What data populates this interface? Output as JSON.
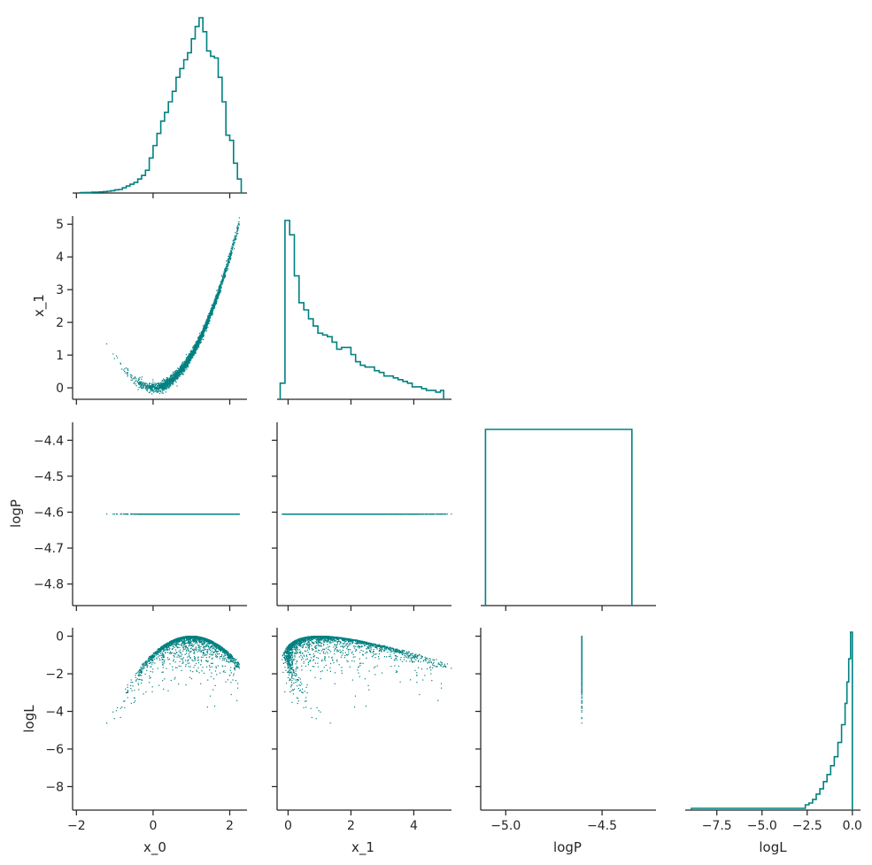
{
  "chart_data": {
    "type": "scatter",
    "title": "",
    "variables": [
      "x_0",
      "x_1",
      "logP",
      "logL"
    ],
    "axis_labels": {
      "x_0": "x_0",
      "x_1": "x_1",
      "logP": "logP",
      "logL": "logL"
    },
    "color": "#008080",
    "axis_ranges": {
      "x_0": [
        -2.1,
        2.45
      ],
      "x_1": [
        -0.35,
        5.2
      ],
      "logP": [
        -5.13,
        -4.22
      ],
      "logP_row": [
        -4.86,
        -4.35
      ],
      "logL": [
        -9.25,
        0.45
      ],
      "x_1_row": [
        -0.35,
        5.25
      ]
    },
    "ticks": {
      "x_0": [
        -2,
        0,
        2
      ],
      "x_0_labels": [
        "−2",
        "0",
        "2"
      ],
      "x_1": [
        0,
        2,
        4
      ],
      "x_1_labels": [
        "0",
        "2",
        "4"
      ],
      "x_1_row": [
        0,
        1,
        2,
        3,
        4,
        5
      ],
      "x_1_row_labels": [
        "0",
        "1",
        "2",
        "3",
        "4",
        "5"
      ],
      "logP_col": [
        -5.0,
        -4.5
      ],
      "logP_col_labels": [
        "−5.0",
        "−4.5"
      ],
      "logP_row": [
        -4.8,
        -4.7,
        -4.6,
        -4.5,
        -4.4
      ],
      "logP_row_labels": [
        "−4.8",
        "−4.7",
        "−4.6",
        "−4.5",
        "−4.4"
      ],
      "logL_col": [
        -7.5,
        -5.0,
        -2.5,
        0.0
      ],
      "logL_col_labels": [
        "−7.5",
        "−5.0",
        "−2.5",
        "0.0"
      ],
      "logL_row": [
        0,
        -2,
        -4,
        -6,
        -8
      ],
      "logL_row_labels": [
        "0",
        "−2",
        "−4",
        "−6",
        "−8"
      ]
    },
    "histograms": {
      "x_0": {
        "bin_edges": [
          -1.9,
          -1.8,
          -1.7,
          -1.6,
          -1.5,
          -1.4,
          -1.3,
          -1.2,
          -1.1,
          -1.0,
          -0.9,
          -0.8,
          -0.7,
          -0.6,
          -0.5,
          -0.4,
          -0.3,
          -0.2,
          -0.1,
          0.0,
          0.1,
          0.2,
          0.3,
          0.4,
          0.5,
          0.6,
          0.7,
          0.8,
          0.9,
          1.0,
          1.1,
          1.2,
          1.3,
          1.4,
          1.5,
          1.6,
          1.7,
          1.8,
          1.9,
          2.0,
          2.1,
          2.2,
          2.3
        ],
        "counts": [
          0.2,
          0.3,
          0.3,
          0.5,
          0.5,
          0.6,
          0.8,
          1,
          1.3,
          1.8,
          2,
          3,
          4,
          5,
          6,
          8,
          10,
          13,
          20,
          27,
          34,
          41,
          46,
          52,
          58,
          66,
          71,
          76,
          80,
          88,
          95,
          100,
          92,
          81,
          78,
          77,
          66,
          52,
          33,
          30,
          17,
          8
        ]
      },
      "x_1": {
        "bin_edges": [
          -0.25,
          -0.1,
          0.05,
          0.2,
          0.35,
          0.5,
          0.65,
          0.8,
          0.95,
          1.1,
          1.25,
          1.4,
          1.55,
          1.7,
          1.85,
          2.0,
          2.15,
          2.3,
          2.45,
          2.6,
          2.75,
          2.9,
          3.05,
          3.2,
          3.35,
          3.5,
          3.65,
          3.8,
          3.95,
          4.1,
          4.25,
          4.4,
          4.55,
          4.7,
          4.85,
          4.95
        ],
        "counts": [
          9,
          100,
          92,
          69,
          54,
          50,
          45,
          41,
          37,
          36,
          35,
          32,
          28,
          29,
          29,
          25,
          21,
          19,
          18,
          18,
          16,
          15,
          13,
          13,
          12,
          11,
          10,
          9,
          7,
          7,
          6,
          5,
          5,
          4,
          5
        ]
      },
      "logP": {
        "bin_edges": [
          -5.105,
          -4.345
        ],
        "counts": [
          1
        ]
      },
      "logL": {
        "bin_edges": [
          -8.9,
          -2.6,
          -2.4,
          -2.2,
          -2.0,
          -1.8,
          -1.6,
          -1.4,
          -1.2,
          -1.0,
          -0.8,
          -0.6,
          -0.4,
          -0.3,
          -0.2,
          -0.1,
          0.0
        ],
        "counts": [
          1,
          3,
          4,
          6,
          9,
          12,
          16,
          20,
          25,
          30,
          38,
          48,
          60,
          72,
          85,
          100
        ]
      }
    }
  }
}
